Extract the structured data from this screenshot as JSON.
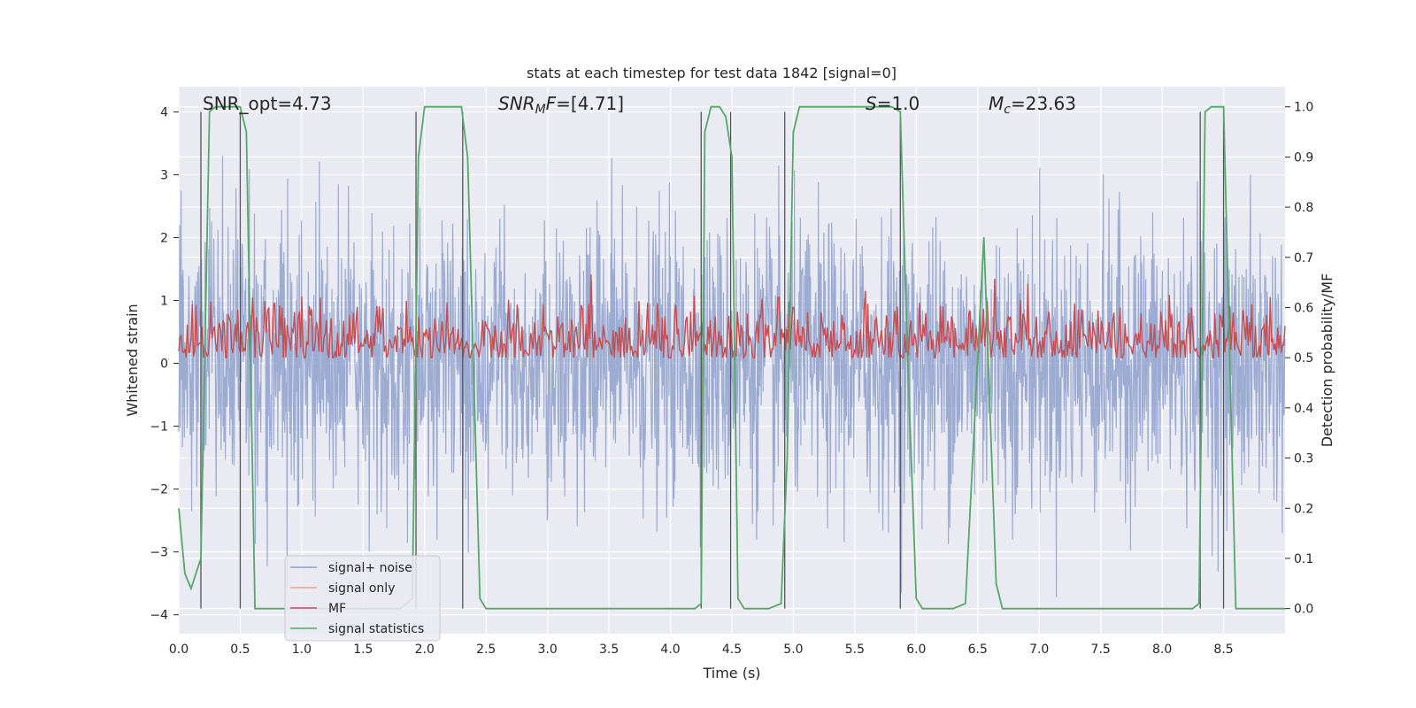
{
  "chart_data": {
    "type": "line",
    "title": "stats at each timestep for test data 1842 [signal=0]",
    "xlabel": "Time (s)",
    "ylabel_left": "Whitened strain",
    "ylabel_right": "Detection probability/MF",
    "xlim": [
      0,
      9.0
    ],
    "ylim_left": [
      -4.3,
      4.4
    ],
    "ylim_right": [
      -0.05,
      1.04
    ],
    "x_ticks": [
      0.0,
      0.5,
      1.0,
      1.5,
      2.0,
      2.5,
      3.0,
      3.5,
      4.0,
      4.5,
      5.0,
      5.5,
      6.0,
      6.5,
      7.0,
      7.5,
      8.0,
      8.5
    ],
    "x_tick_labels": [
      "0.0",
      "0.5",
      "1.0",
      "1.5",
      "2.0",
      "2.5",
      "3.0",
      "3.5",
      "4.0",
      "4.5",
      "5.0",
      "5.5",
      "6.0",
      "6.5",
      "7.0",
      "7.5",
      "8.0",
      "8.5"
    ],
    "y_left_ticks": [
      4,
      3,
      2,
      1,
      0,
      -1,
      -2,
      -3,
      -4
    ],
    "y_left_tick_labels": [
      "4",
      "3",
      "2",
      "1",
      "0",
      "−1",
      "−2",
      "−3",
      "−4"
    ],
    "y_right_ticks": [
      1.0,
      0.9,
      0.8,
      0.7,
      0.6,
      0.5,
      0.4,
      0.3,
      0.2,
      0.1,
      0.0
    ],
    "y_right_tick_labels": [
      "1.0",
      "0.9",
      "0.8",
      "0.7",
      "0.6",
      "0.5",
      "0.4",
      "0.3",
      "0.2",
      "0.1",
      "0.0"
    ],
    "grid": true,
    "annotations": {
      "snr_opt": "SNR_opt=4.73",
      "snr_mf_symbol": "SNR",
      "snr_mf_sub": "M",
      "snr_mf_symbol2": "F",
      "snr_mf_value": "=[4.71]",
      "s_symbol": "S",
      "s_value": "=1.0",
      "mc_symbol": "M",
      "mc_sub": "c",
      "mc_value": "=23.63"
    },
    "legend": {
      "position": "lower-left",
      "entries": [
        {
          "label": "signal+ noise",
          "color": "#8da0cb"
        },
        {
          "label": "signal only",
          "color": "#e9a58b"
        },
        {
          "label": "MF",
          "color": "#c44e52"
        },
        {
          "label": "signal statistics",
          "color": "#55a868"
        }
      ]
    },
    "vertical_markers": [
      0.18,
      0.5,
      1.93,
      2.31,
      4.25,
      4.49,
      4.93,
      5.87,
      8.31,
      8.5
    ],
    "series": [
      {
        "name": "signal+ noise",
        "axis": "left",
        "color": "#8da0cb",
        "kind": "noise",
        "sample_count": 2400,
        "x_range": [
          0,
          9.0
        ],
        "std": 1.1,
        "peak_max": 3.8,
        "peak_min": -3.9
      },
      {
        "name": "MF",
        "axis": "right",
        "color": "#c44e52",
        "kind": "noise",
        "sample_count": 900,
        "x_range": [
          0,
          9.0
        ],
        "baseline": 0.53,
        "spread": 0.04,
        "floor": 0.5,
        "spike_x": [
          1.15,
          4.88,
          5.0
        ],
        "spike_y": [
          0.62,
          0.62,
          0.6
        ]
      },
      {
        "name": "signal statistics",
        "axis": "right",
        "color": "#55a868",
        "kind": "line",
        "x": [
          0.0,
          0.05,
          0.1,
          0.18,
          0.25,
          0.3,
          0.45,
          0.5,
          0.55,
          0.62,
          0.8,
          1.0,
          1.2,
          1.5,
          1.8,
          1.9,
          1.95,
          2.0,
          2.05,
          2.3,
          2.35,
          2.45,
          2.5,
          3.0,
          3.5,
          4.0,
          4.2,
          4.25,
          4.28,
          4.33,
          4.4,
          4.45,
          4.5,
          4.55,
          4.6,
          4.8,
          4.9,
          4.95,
          5.0,
          5.05,
          5.5,
          5.8,
          5.87,
          5.93,
          6.0,
          6.05,
          6.1,
          6.3,
          6.4,
          6.5,
          6.55,
          6.65,
          6.7,
          7.0,
          7.5,
          8.0,
          8.25,
          8.3,
          8.35,
          8.4,
          8.5,
          8.55,
          8.6,
          8.9,
          9.0
        ],
        "y": [
          0.2,
          0.07,
          0.04,
          0.1,
          0.99,
          1.0,
          1.0,
          1.0,
          0.95,
          0.0,
          0.0,
          0.0,
          0.0,
          0.0,
          0.0,
          0.02,
          0.9,
          1.0,
          1.0,
          1.0,
          0.9,
          0.02,
          0.0,
          0.0,
          0.0,
          0.0,
          0.0,
          0.01,
          0.95,
          1.0,
          1.0,
          0.98,
          0.9,
          0.02,
          0.0,
          0.0,
          0.01,
          0.3,
          0.95,
          1.0,
          1.0,
          1.0,
          0.99,
          0.5,
          0.02,
          0.0,
          0.0,
          0.0,
          0.01,
          0.5,
          0.74,
          0.05,
          0.0,
          0.0,
          0.0,
          0.0,
          0.0,
          0.01,
          0.99,
          1.0,
          1.0,
          0.5,
          0.0,
          0.0,
          0.0
        ]
      }
    ]
  }
}
